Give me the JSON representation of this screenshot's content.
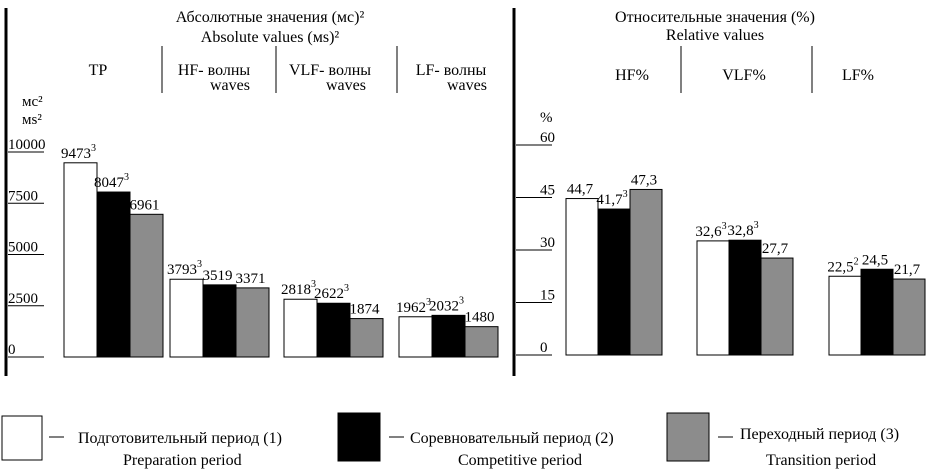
{
  "chart_data": [
    {
      "type": "bar",
      "title": "Абсолютные значения (мс)²",
      "title_en": "Absolute values (мs)²",
      "ylabel": "мс²",
      "ylabel_en": "мs²",
      "ylim": [
        0,
        10000
      ],
      "yticks": [
        "0",
        "2500",
        "5000",
        "7500",
        "10000"
      ],
      "categories": [
        {
          "l1": "TP",
          "l2": ""
        },
        {
          "l1": "HF-  волны",
          "l2": "waves"
        },
        {
          "l1": "VLF-  волны",
          "l2": "waves"
        },
        {
          "l1": "LF- волны",
          "l2": "waves"
        }
      ],
      "series": [
        {
          "name": "Подготовительный период (1)",
          "values": [
            9473,
            3793,
            2818,
            1962
          ],
          "labels": [
            "9473",
            "3793",
            "2818",
            "1962"
          ],
          "sup": [
            "3",
            "3",
            "3",
            "3"
          ]
        },
        {
          "name": "Соревновательный период (2)",
          "values": [
            8047,
            3519,
            2622,
            2032
          ],
          "labels": [
            "8047",
            "3519",
            "2622",
            "2032"
          ],
          "sup": [
            "3",
            "",
            "3",
            "3"
          ]
        },
        {
          "name": "Переходный период (3)",
          "values": [
            6961,
            3371,
            1874,
            1480
          ],
          "labels": [
            "6961",
            "3371",
            "1874",
            "1480"
          ],
          "sup": [
            "",
            "",
            "",
            ""
          ]
        }
      ]
    },
    {
      "type": "bar",
      "title": "Относительные значения (%)",
      "title_en": "Relative values",
      "ylabel": "%",
      "ylim": [
        0,
        60
      ],
      "yticks": [
        "0",
        "15",
        "30",
        "45",
        "60"
      ],
      "categories": [
        {
          "l1": "HF%",
          "l2": ""
        },
        {
          "l1": "VLF%",
          "l2": ""
        },
        {
          "l1": "LF%",
          "l2": ""
        }
      ],
      "series": [
        {
          "name": "Подготовительный период (1)",
          "values": [
            44.7,
            32.6,
            22.5
          ],
          "labels": [
            "44,7",
            "32,6",
            "22,5"
          ],
          "sup": [
            "",
            "3",
            "2"
          ]
        },
        {
          "name": "Соревновательный период (2)",
          "values": [
            41.7,
            32.8,
            24.5
          ],
          "labels": [
            "41,7",
            "32,8",
            "24,5"
          ],
          "sup": [
            "3",
            "3",
            ""
          ]
        },
        {
          "name": "Переходный период (3)",
          "values": [
            47.3,
            27.7,
            21.7
          ],
          "labels": [
            "47,3",
            "27,7",
            "21,7"
          ],
          "sup": [
            "",
            "",
            ""
          ]
        }
      ]
    }
  ],
  "colors": {
    "prep": "#ffffff",
    "comp": "#000000",
    "trans": "#8c8c8c"
  },
  "legend": [
    {
      "ru": "Подготовительный период (1)",
      "en": "Preparation period"
    },
    {
      "ru": "Соревновательный период (2)",
      "en": "Competitive period"
    },
    {
      "ru": "Переходный период (3)",
      "en": "Transition period"
    }
  ]
}
